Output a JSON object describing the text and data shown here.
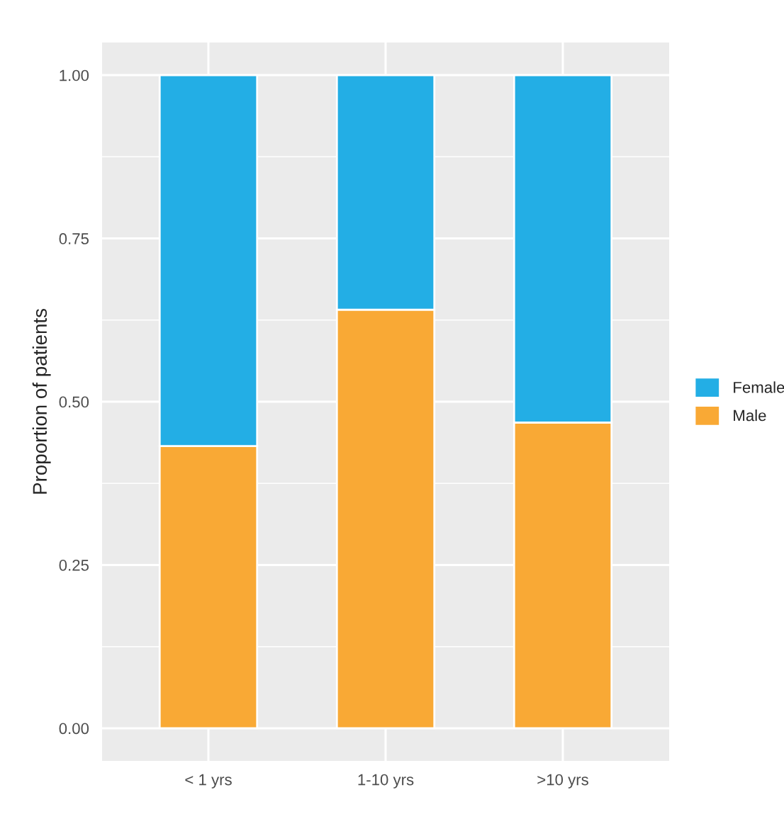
{
  "chart_data": {
    "type": "bar",
    "ylabel": "Proportion of patients",
    "categories": [
      "< 1 yrs",
      "1-10 yrs",
      ">10 yrs"
    ],
    "stacked": true,
    "series": [
      {
        "name": "Male",
        "color": "#f9a935",
        "values": [
          0.432,
          0.641,
          0.468
        ]
      },
      {
        "name": "Female",
        "color": "#23aee5",
        "values": [
          0.568,
          0.359,
          0.532
        ]
      }
    ],
    "ylim": [
      -0.05,
      1.05
    ],
    "yticks": [
      {
        "value": 0,
        "label": "0.00"
      },
      {
        "value": 0.25,
        "label": "0.25"
      },
      {
        "value": 0.5,
        "label": "0.50"
      },
      {
        "value": 0.75,
        "label": "0.75"
      },
      {
        "value": 1,
        "label": "1.00"
      }
    ],
    "grid": true,
    "legend": "right"
  }
}
